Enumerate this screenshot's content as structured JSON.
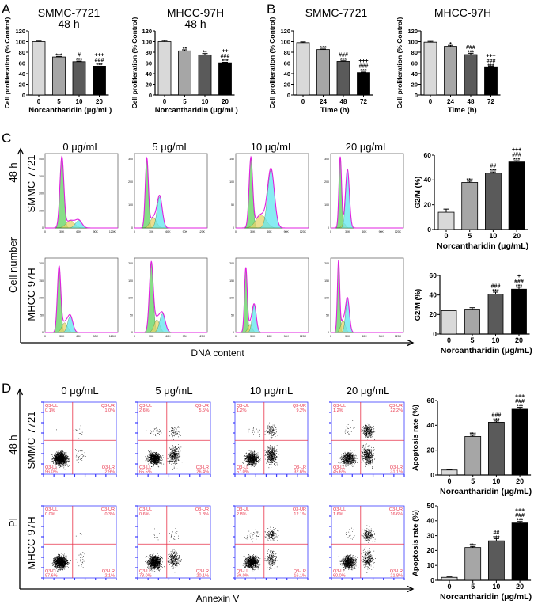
{
  "panel_labels": {
    "a": "A",
    "b": "B",
    "c": "C",
    "d": "D"
  },
  "colors": {
    "bar_0": "#d9d9d9",
    "bar_1": "#a6a6a6",
    "bar_2": "#5a5a5a",
    "bar_3": "#000000",
    "g1": "#5fd35f",
    "s_phase": "#e6d36a",
    "g2": "#5fe6ee",
    "fit": "#e020e0",
    "quadrant_line": "#e8334a",
    "quadrant_text": "#e8334a",
    "flow_axis": "#3a3aff"
  },
  "chart_data": [
    {
      "id": "a-smmc",
      "type": "bar",
      "title": "SMMC-7721",
      "subtitle": "48 h",
      "categories": [
        "0",
        "5",
        "10",
        "20"
      ],
      "values": [
        100,
        71,
        62.5,
        53
      ],
      "errors": [
        1,
        1,
        1,
        1
      ],
      "significance": [
        "",
        "***",
        "#/***",
        "+++/###/***"
      ],
      "xlabel": "Norcantharidin (μg/mL)",
      "ylabel": "Cell proliferation (% Control)",
      "ylim": [
        0,
        120
      ],
      "yticks": [
        "0",
        "20",
        "40",
        "60",
        "80",
        "100",
        "120"
      ]
    },
    {
      "id": "a-mhcc",
      "type": "bar",
      "title": "MHCC-97H",
      "subtitle": "48 h",
      "categories": [
        "0",
        "5",
        "10",
        "20"
      ],
      "values": [
        100,
        82.5,
        75,
        60.5
      ],
      "errors": [
        2,
        2,
        2.5,
        1
      ],
      "significance": [
        "",
        "**",
        "**",
        "++/###/***"
      ],
      "xlabel": "Norcantharidin (μg/mL)",
      "ylabel": "Cell proliferation (% Control)",
      "ylim": [
        0,
        120
      ],
      "yticks": [
        "0",
        "20",
        "40",
        "60",
        "80",
        "100",
        "120"
      ]
    },
    {
      "id": "b-smmc",
      "type": "bar",
      "title": "SMMC-7721",
      "categories": [
        "0",
        "24",
        "48",
        "72"
      ],
      "values": [
        98,
        85,
        63,
        42
      ],
      "errors": [
        1.5,
        1,
        1,
        1
      ],
      "significance": [
        "",
        "***",
        "###/***",
        "+++/###/***"
      ],
      "xlabel": "Time (h)",
      "ylabel": "Cell proliferation (% Control)",
      "ylim": [
        0,
        120
      ],
      "yticks": [
        "0",
        "20",
        "40",
        "60",
        "80",
        "100",
        "120"
      ]
    },
    {
      "id": "b-mhcc",
      "type": "bar",
      "title": "MHCC-97H",
      "categories": [
        "0",
        "24",
        "48",
        "72"
      ],
      "values": [
        99,
        91,
        75.5,
        51.5
      ],
      "errors": [
        1.5,
        2,
        2.5,
        1
      ],
      "significance": [
        "",
        "*",
        "###/***",
        "+++/###/***"
      ],
      "xlabel": "Time (h)",
      "ylabel": "Cell proliferation (% Control)",
      "ylim": [
        0,
        120
      ],
      "yticks": [
        "0",
        "20",
        "40",
        "60",
        "80",
        "100",
        "120"
      ]
    },
    {
      "id": "c-smmc-g2m",
      "type": "bar",
      "categories": [
        "0",
        "5",
        "10",
        "20"
      ],
      "values": [
        14,
        38,
        45.5,
        54.5
      ],
      "errors": [
        2.5,
        1,
        1,
        1
      ],
      "significance": [
        "",
        "***",
        "##/***",
        "+++/###/***"
      ],
      "xlabel": "Norcantharidin (μg/mL)",
      "ylabel": "G2/M (%)",
      "ylim": [
        0,
        60
      ],
      "yticks": [
        "0",
        "20",
        "40",
        "60"
      ]
    },
    {
      "id": "c-mhcc-g2m",
      "type": "bar",
      "categories": [
        "0",
        "5",
        "10",
        "20"
      ],
      "values": [
        24,
        25.5,
        41,
        46
      ],
      "errors": [
        0.5,
        1.5,
        2,
        2
      ],
      "significance": [
        "",
        "",
        "###/***",
        "+/###/***"
      ],
      "xlabel": "Norcantharidin (μg/mL)",
      "ylabel": "G2/M (%)",
      "ylim": [
        0,
        60
      ],
      "yticks": [
        "0",
        "20",
        "40",
        "60"
      ]
    },
    {
      "id": "d-smmc-apoptosis",
      "type": "bar",
      "categories": [
        "0",
        "5",
        "10",
        "20"
      ],
      "values": [
        4,
        31,
        42.5,
        53
      ],
      "errors": [
        0.5,
        1,
        1,
        1.5
      ],
      "significance": [
        "",
        "***",
        "###/***",
        "+++/###/***"
      ],
      "xlabel": "Norcantharidin (μg/mL)",
      "ylabel": "Apoptosis rate (%)",
      "ylim": [
        0,
        60
      ],
      "yticks": [
        "0",
        "20",
        "40",
        "60"
      ]
    },
    {
      "id": "d-mhcc-apoptosis",
      "type": "bar",
      "categories": [
        "0",
        "5",
        "10",
        "20"
      ],
      "values": [
        2,
        22,
        26.5,
        38.5
      ],
      "errors": [
        0.3,
        0.7,
        1.5,
        1
      ],
      "significance": [
        "",
        "***",
        "##/***",
        "+++/###/***"
      ],
      "xlabel": "Norcantharidin (μg/mL)",
      "ylabel": "Apoptosis rate (%)",
      "ylim": [
        0,
        50
      ],
      "yticks": [
        "0",
        "10",
        "20",
        "30",
        "40",
        "50"
      ]
    }
  ],
  "panel_c": {
    "concentrations": [
      "0 μg/mL",
      "5 μg/mL",
      "10 μg/mL",
      "20 μg/mL"
    ],
    "time": "48 h",
    "cell_lines": [
      "SMMC-7721",
      "MHCC-97H"
    ],
    "ylabel": "Cell number",
    "xlabel": "DNA content",
    "x_ticks": [
      "0",
      "30K",
      "60K",
      "90K",
      "120K"
    ],
    "y_ticks": [
      [
        [
          "0",
          "100",
          "200",
          "300",
          "400"
        ],
        [
          "0",
          "100",
          "200",
          "300"
        ],
        [
          "0",
          "50",
          "100",
          "150"
        ],
        [
          "0",
          "100",
          "200",
          "300"
        ]
      ],
      [
        [
          "0",
          "50",
          "100",
          "150",
          "200"
        ],
        [
          "0",
          "50",
          "100",
          "150",
          "200"
        ],
        [
          "0",
          "50",
          "100",
          "150",
          "200"
        ],
        [
          "0",
          "50",
          "100",
          "150",
          "200"
        ]
      ]
    ]
  },
  "panel_d": {
    "concentrations": [
      "0 μg/mL",
      "5 μg/mL",
      "10 μg/mL",
      "20 μg/mL"
    ],
    "time": "48 h",
    "cell_lines": [
      "SMMC-7721",
      "MHCC-97H"
    ],
    "ylabel": "PI",
    "xlabel": "Annexin V",
    "quadrant_names": {
      "ul": "Q3-UL",
      "ur": "Q3-UR",
      "ll": "Q3-LL",
      "lr": "Q3-LR"
    },
    "quadrants": [
      [
        {
          "ul": "0.1%",
          "ur": "1.0%",
          "ll": "96.0%",
          "lr": "2.9%"
        },
        {
          "ul": "2.6%",
          "ur": "5.5%",
          "ll": "65.5%",
          "lr": "26.4%"
        },
        {
          "ul": "1.2%",
          "ur": "9.2%",
          "ll": "57.0%",
          "lr": "32.6%"
        },
        {
          "ul": "1.2%",
          "ur": "22.2%",
          "ll": "45.6%",
          "lr": "31.1%"
        }
      ],
      [
        {
          "ul": "0.0%",
          "ur": "0.3%",
          "ll": "97.6%",
          "lr": "2.1%"
        },
        {
          "ul": "0.6%",
          "ur": "1.3%",
          "ll": "78.0%",
          "lr": "20.1%"
        },
        {
          "ul": "2.8%",
          "ur": "12.1%",
          "ll": "69.0%",
          "lr": "16.1%"
        },
        {
          "ul": "1.6%",
          "ur": "16.6%",
          "ll": "60.0%",
          "lr": "21.8%"
        }
      ]
    ]
  }
}
